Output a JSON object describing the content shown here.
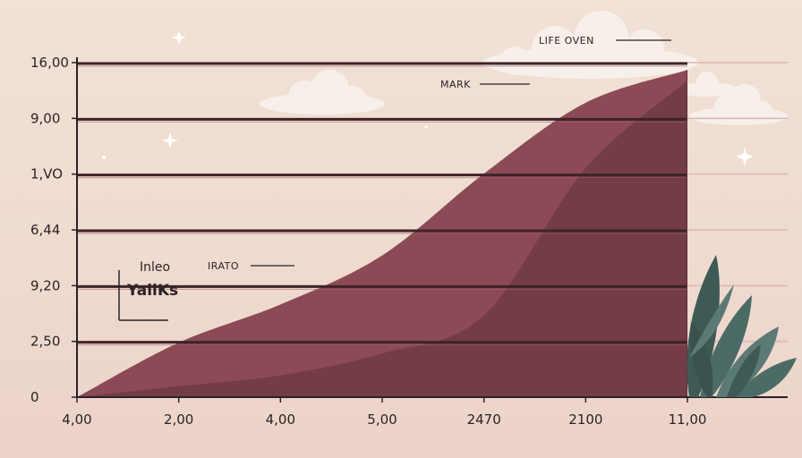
{
  "chart_data": {
    "type": "area",
    "title": "",
    "xlabel": "",
    "ylabel": "",
    "x_tick_labels": [
      "4,00",
      "2,00",
      "4,00",
      "5,00",
      "2470",
      "2100",
      "11,00"
    ],
    "y_tick_labels": [
      "0",
      "2,50",
      "9,20",
      "6,44",
      "1,VO",
      "9,00",
      "16,00"
    ],
    "grid": true,
    "legend_placement": "left",
    "legend": {
      "title": "Inleo",
      "subtitle": "YallKs"
    },
    "series": [
      {
        "name": "",
        "color": "#8b4a55",
        "values": [
          0,
          1.0,
          1.7,
          2.6,
          4.1,
          5.4,
          6.0
        ]
      },
      {
        "name": "",
        "color": "#6f3944",
        "values": [
          0,
          0.2,
          0.4,
          0.8,
          1.5,
          4.2,
          5.8
        ]
      }
    ],
    "annotations": [
      {
        "text": "LIFE OVEN",
        "x_index": 6,
        "y": 6.0
      },
      {
        "text": "MARK",
        "x_index": 4.45,
        "y": 5.5
      },
      {
        "text": "IRATO",
        "x_index": 2.05,
        "y": 2.3
      }
    ],
    "ylim": [
      0,
      6.3
    ]
  },
  "colors": {
    "background": "#f1e1d6",
    "area_main": "#8b4a55",
    "area_shadow": "#6f3944",
    "slat_line": "#3e2328",
    "grid": "#dbb4b4",
    "leaf": "#4d6b66"
  }
}
